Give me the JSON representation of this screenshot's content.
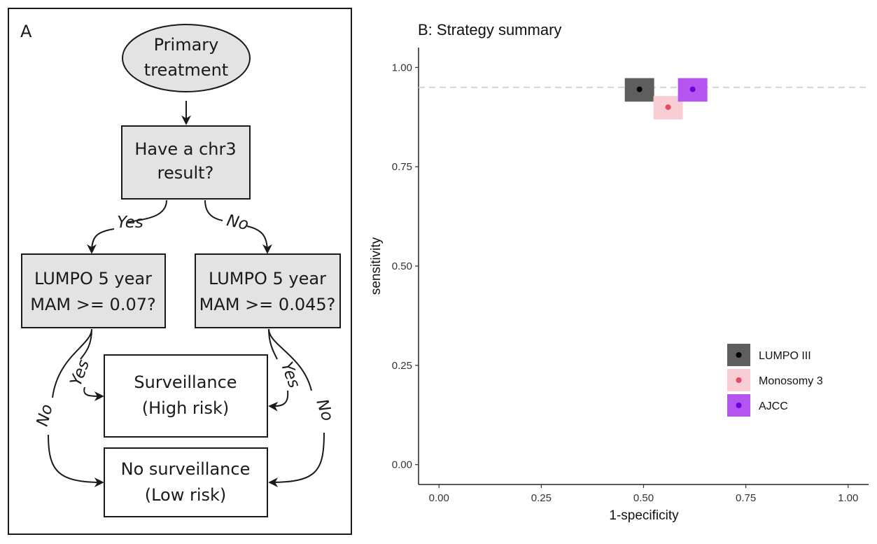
{
  "panel_a": {
    "label": "A",
    "nodes": {
      "start": [
        "Primary",
        "treatment"
      ],
      "chr3": [
        "Have a chr3",
        "result?"
      ],
      "left_q": [
        "LUMPO 5 year",
        "MAM >= 0.07?"
      ],
      "right_q": [
        "LUMPO 5 year",
        "MAM >= 0.045?"
      ],
      "high": [
        "Surveillance",
        "(High risk)"
      ],
      "low": [
        "No surveillance",
        "(Low risk)"
      ]
    },
    "edges": {
      "chr3_yes": "Yes",
      "chr3_no": "No",
      "left_yes": "Yes",
      "left_no": "No",
      "right_yes": "Yes",
      "right_no": "No"
    }
  },
  "panel_b": {
    "title": "B: Strategy summary"
  },
  "chart_data": {
    "type": "scatter",
    "title": "B: Strategy summary",
    "xlabel": "1-specificity",
    "ylabel": "sensitivity",
    "xlim": [
      -0.05,
      1.05
    ],
    "ylim": [
      -0.05,
      1.05
    ],
    "x_ticks": [
      "0.00",
      "0.25",
      "0.50",
      "0.75",
      "1.00"
    ],
    "y_ticks": [
      "0.00",
      "0.25",
      "0.50",
      "0.75",
      "1.00"
    ],
    "reference_line": {
      "y": 0.95,
      "style": "dashed",
      "color": "#d3d3d3"
    },
    "grid": false,
    "legend_position": "right",
    "series": [
      {
        "name": "LUMPO III",
        "x": 0.49,
        "y": 0.945,
        "point_color": "#000000",
        "box_color": "#5e5e5e"
      },
      {
        "name": "Monosomy 3",
        "x": 0.56,
        "y": 0.9,
        "point_color": "#e84a5f",
        "box_color": "#f8cdd4"
      },
      {
        "name": "AJCC",
        "x": 0.62,
        "y": 0.945,
        "point_color": "#6a00d9",
        "box_color": "#b455f2"
      }
    ]
  }
}
